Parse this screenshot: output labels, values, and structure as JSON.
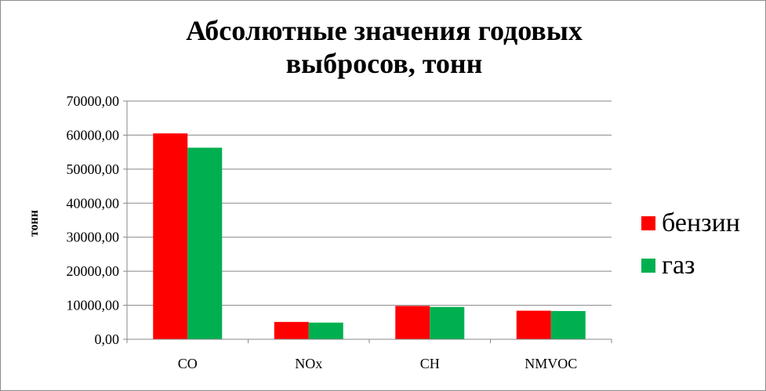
{
  "chart_data": {
    "type": "bar",
    "title": "Абсолютные значения годовых\nвыбросов, тонн",
    "ylabel": "тонн",
    "xlabel": "",
    "categories": [
      "CO",
      "NOx",
      "CH",
      "NMVOC"
    ],
    "series": [
      {
        "name": "бензин",
        "color": "#ff0000",
        "values": [
          60500,
          5100,
          9800,
          8400
        ]
      },
      {
        "name": "газ",
        "color": "#00b050",
        "values": [
          56300,
          4900,
          9500,
          8300
        ]
      }
    ],
    "ylim": [
      0,
      70000
    ],
    "yticks": [
      "0,00",
      "10000,00",
      "20000,00",
      "30000,00",
      "40000,00",
      "50000,00",
      "60000,00",
      "70000,00"
    ],
    "grid": true,
    "legend_position": "right"
  }
}
